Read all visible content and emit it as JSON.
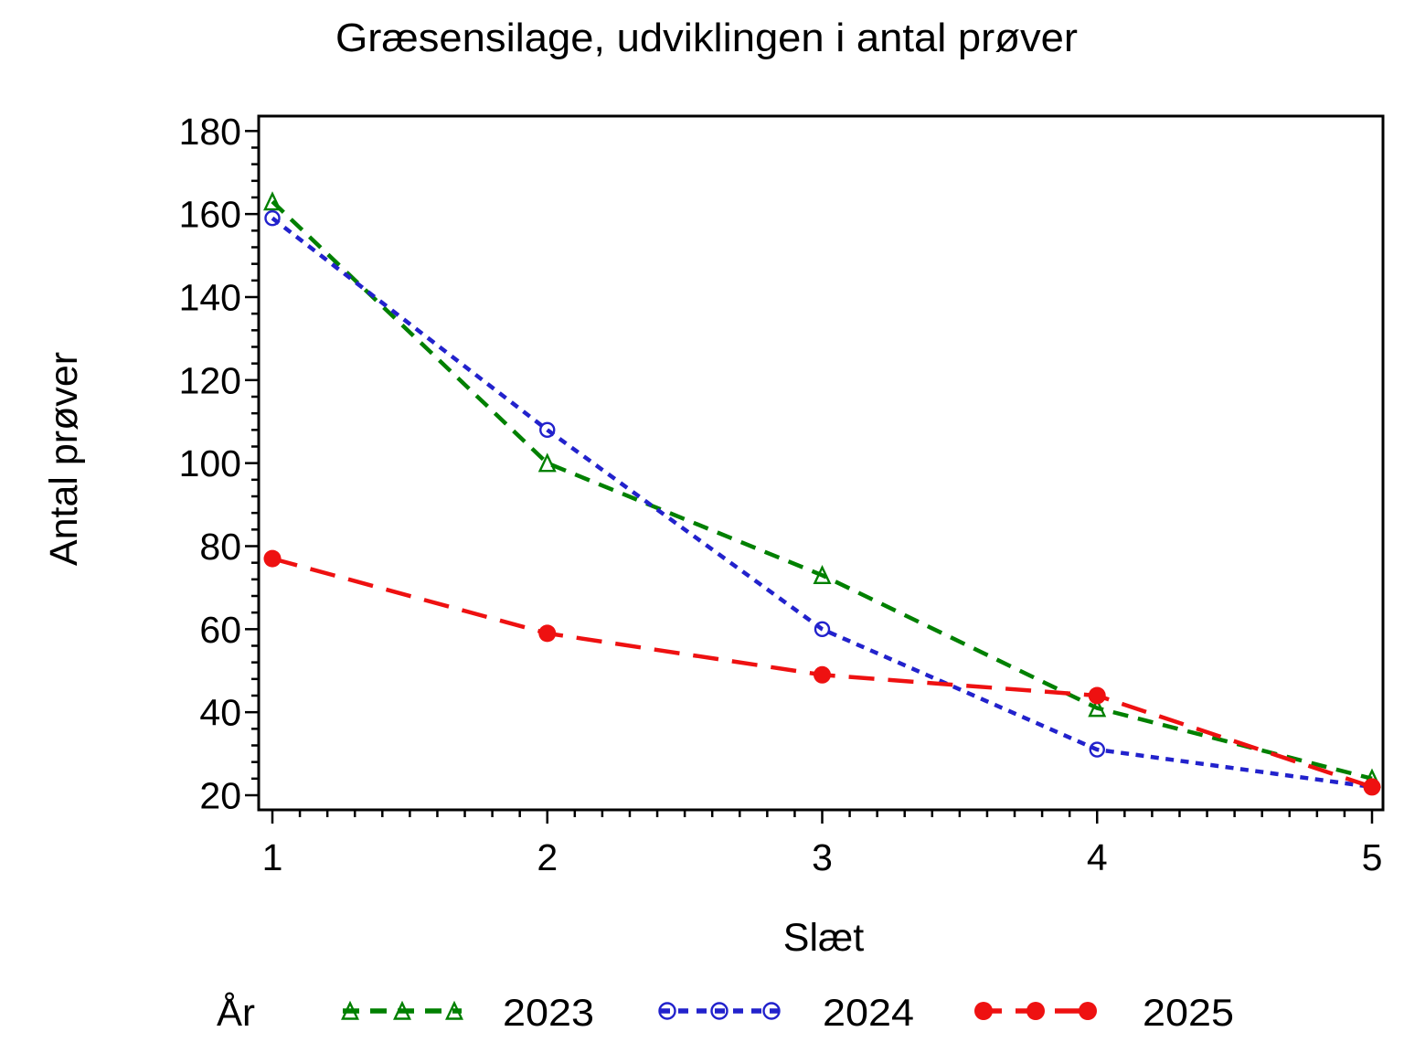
{
  "chart_data": {
    "type": "line",
    "title": "Græsensilage, udviklingen i antal prøver",
    "xlabel": "Slæt",
    "ylabel": "Antal prøver",
    "legend_title": "År",
    "legend_position": "bottom",
    "grid": false,
    "x": [
      1,
      2,
      3,
      4,
      5
    ],
    "xticks": [
      "1",
      "2",
      "3",
      "4",
      "5"
    ],
    "yticks": [
      "20",
      "40",
      "60",
      "80",
      "100",
      "120",
      "140",
      "160",
      "180"
    ],
    "ylim": [
      16.5,
      183.5
    ],
    "xlim": [
      0.95,
      5.04
    ],
    "y_minor_step": 4,
    "x_minor_step": 0.1,
    "series": [
      {
        "name": "2023",
        "color": "#008000",
        "marker": "triangle-open",
        "dash": "dash",
        "values": [
          163,
          100,
          73,
          41,
          24
        ]
      },
      {
        "name": "2024",
        "color": "#2222CC",
        "marker": "circle-open",
        "dash": "dot",
        "values": [
          159,
          108,
          60,
          31,
          22
        ]
      },
      {
        "name": "2025",
        "color": "#EE1111",
        "marker": "circle-filled",
        "dash": "long-dash",
        "values": [
          77,
          59,
          49,
          44,
          22
        ]
      }
    ]
  },
  "colors": {
    "axis": "#000000",
    "text": "#000000",
    "background": "#ffffff",
    "series_2023": "#008000",
    "series_2024": "#2222CC",
    "series_2025": "#EE1111"
  }
}
